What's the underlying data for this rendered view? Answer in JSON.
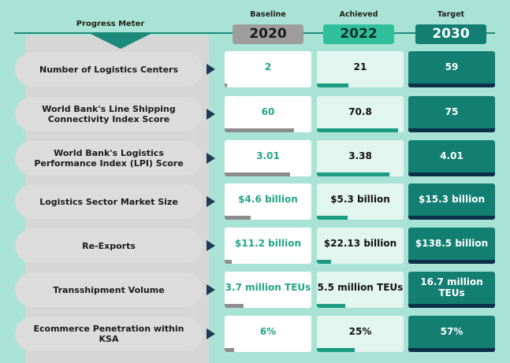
{
  "header": {
    "title": "Progress Meter",
    "columns": [
      {
        "label": "Baseline",
        "year": "2020"
      },
      {
        "label": "Achieved",
        "year": "2022"
      },
      {
        "label": "Target",
        "year": "2030"
      }
    ]
  },
  "chart_data": {
    "type": "table",
    "title": "Progress Meter",
    "columns": [
      "Baseline 2020",
      "Achieved 2022",
      "Target 2030"
    ],
    "rows": [
      {
        "metric": "Number of Logistics Centers",
        "baseline": "2",
        "achieved": "21",
        "target": "59",
        "progress": {
          "baseline": 0.03,
          "achieved": 0.36,
          "target": 1.0
        }
      },
      {
        "metric": "World Bank's Line Shipping Connectivity Index Score",
        "baseline": "60",
        "achieved": "70.8",
        "target": "75",
        "progress": {
          "baseline": 0.8,
          "achieved": 0.94,
          "target": 1.0
        }
      },
      {
        "metric": "World Bank's Logistics Performance Index (LPI) Score",
        "baseline": "3.01",
        "achieved": "3.38",
        "target": "4.01",
        "progress": {
          "baseline": 0.75,
          "achieved": 0.84,
          "target": 1.0
        }
      },
      {
        "metric": "Logistics Sector Market Size",
        "baseline": "$4.6 billion",
        "achieved": "$5.3 billion",
        "target": "$15.3 billion",
        "progress": {
          "baseline": 0.3,
          "achieved": 0.35,
          "target": 1.0
        }
      },
      {
        "metric": "Re-Exports",
        "baseline": "$11.2 billion",
        "achieved": "$22.13 billion",
        "target": "$138.5 billion",
        "progress": {
          "baseline": 0.08,
          "achieved": 0.16,
          "target": 1.0
        }
      },
      {
        "metric": "Transshipment Volume",
        "baseline": "3.7 million TEUs",
        "achieved": "5.5 million TEUs",
        "target": "16.7 million TEUs",
        "progress": {
          "baseline": 0.22,
          "achieved": 0.33,
          "target": 1.0
        }
      },
      {
        "metric": "Ecommerce Penetration within KSA",
        "baseline": "6%",
        "achieved": "25%",
        "target": "57%",
        "progress": {
          "baseline": 0.11,
          "achieved": 0.44,
          "target": 1.0
        }
      }
    ]
  }
}
